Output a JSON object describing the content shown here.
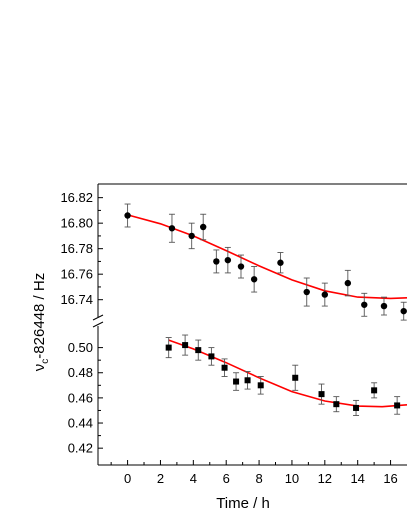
{
  "chart_data": {
    "type": "scatter",
    "xlabel": "Time / h",
    "ylabel": {
      "nu": "ν",
      "sub": "c",
      "rest": "-826448 / Hz"
    },
    "xlim": [
      -1.8,
      17
    ],
    "x_ticks": [
      0,
      2,
      4,
      6,
      8,
      10,
      12,
      14,
      16
    ],
    "broken_y_axis": true,
    "upper_panel": {
      "ylim": [
        16.728,
        16.826
      ],
      "y_ticks": [
        16.74,
        16.76,
        16.78,
        16.8,
        16.82
      ],
      "y_tick_labels": [
        "16.74",
        "16.76",
        "16.78",
        "16.80",
        "16.82"
      ]
    },
    "lower_panel": {
      "ylim": [
        0.409,
        0.514
      ],
      "y_ticks": [
        0.42,
        0.44,
        0.46,
        0.48,
        0.5
      ],
      "y_tick_labels": [
        "0.42",
        "0.44",
        "0.46",
        "0.48",
        "0.50"
      ]
    },
    "series": [
      {
        "panel": "upper",
        "marker": "circle",
        "color": "#000000",
        "points": [
          {
            "x": 0.0,
            "y": 16.806,
            "err": 0.009
          },
          {
            "x": 2.7,
            "y": 16.796,
            "err": 0.011
          },
          {
            "x": 3.9,
            "y": 16.79,
            "err": 0.01
          },
          {
            "x": 4.6,
            "y": 16.797,
            "err": 0.01
          },
          {
            "x": 5.4,
            "y": 16.77,
            "err": 0.009
          },
          {
            "x": 6.1,
            "y": 16.771,
            "err": 0.01
          },
          {
            "x": 6.9,
            "y": 16.766,
            "err": 0.009
          },
          {
            "x": 7.7,
            "y": 16.756,
            "err": 0.01
          },
          {
            "x": 9.3,
            "y": 16.769,
            "err": 0.008
          },
          {
            "x": 10.9,
            "y": 16.746,
            "err": 0.011
          },
          {
            "x": 12.0,
            "y": 16.744,
            "err": 0.009
          },
          {
            "x": 13.4,
            "y": 16.753,
            "err": 0.01
          },
          {
            "x": 14.4,
            "y": 16.736,
            "err": 0.009
          },
          {
            "x": 15.6,
            "y": 16.735,
            "err": 0.007
          },
          {
            "x": 16.8,
            "y": 16.731,
            "err": 0.007
          }
        ]
      },
      {
        "panel": "lower",
        "marker": "square",
        "color": "#000000",
        "points": [
          {
            "x": 2.5,
            "y": 0.5,
            "err": 0.008
          },
          {
            "x": 3.5,
            "y": 0.502,
            "err": 0.008
          },
          {
            "x": 4.3,
            "y": 0.498,
            "err": 0.008
          },
          {
            "x": 5.1,
            "y": 0.493,
            "err": 0.007
          },
          {
            "x": 5.9,
            "y": 0.484,
            "err": 0.007
          },
          {
            "x": 6.6,
            "y": 0.473,
            "err": 0.007
          },
          {
            "x": 7.3,
            "y": 0.474,
            "err": 0.007
          },
          {
            "x": 8.1,
            "y": 0.47,
            "err": 0.007
          },
          {
            "x": 10.2,
            "y": 0.476,
            "err": 0.01
          },
          {
            "x": 11.8,
            "y": 0.463,
            "err": 0.008
          },
          {
            "x": 12.7,
            "y": 0.455,
            "err": 0.006
          },
          {
            "x": 13.9,
            "y": 0.452,
            "err": 0.006
          },
          {
            "x": 15.0,
            "y": 0.466,
            "err": 0.006
          },
          {
            "x": 16.4,
            "y": 0.454,
            "err": 0.007
          }
        ]
      }
    ],
    "fits": [
      {
        "panel": "upper",
        "color": "#ff0000",
        "points": [
          [
            0,
            16.8065
          ],
          [
            2,
            16.7995
          ],
          [
            4,
            16.79
          ],
          [
            6,
            16.7785
          ],
          [
            8,
            16.7665
          ],
          [
            10,
            16.7555
          ],
          [
            12,
            16.747
          ],
          [
            14,
            16.742
          ],
          [
            16,
            16.741
          ],
          [
            17,
            16.7415
          ]
        ]
      },
      {
        "panel": "lower",
        "color": "#ff0000",
        "points": [
          [
            2.5,
            0.506
          ],
          [
            4,
            0.499
          ],
          [
            6,
            0.488
          ],
          [
            8,
            0.476
          ],
          [
            10,
            0.465
          ],
          [
            12,
            0.4575
          ],
          [
            14,
            0.4535
          ],
          [
            15.5,
            0.453
          ],
          [
            17,
            0.4545
          ]
        ]
      }
    ]
  }
}
